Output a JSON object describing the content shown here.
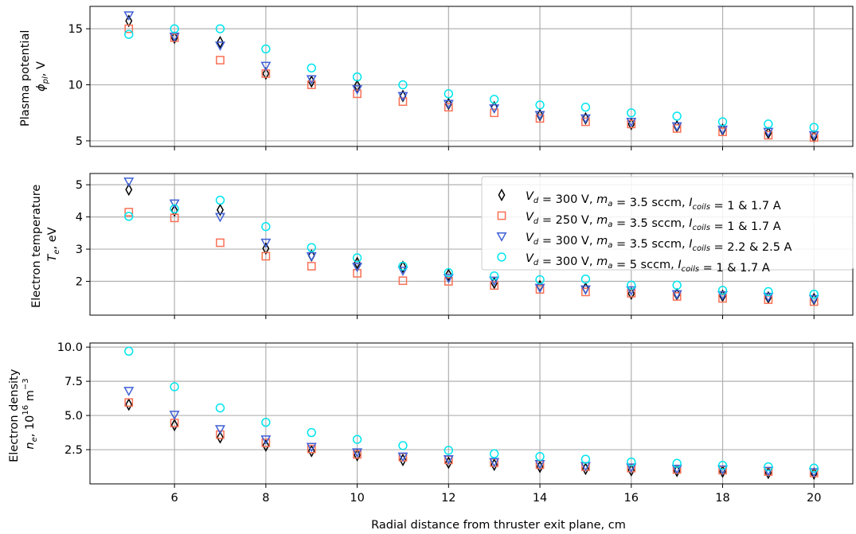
{
  "chart_data": [
    {
      "type": "scatter",
      "ylabel_lines": [
        "Plasma potential",
        "ϕ_pl, V"
      ],
      "xlim": [
        4.15,
        20.85
      ],
      "ylim": [
        4.5,
        17.0
      ],
      "yticks": [
        5,
        10,
        15
      ],
      "ytick_labels": [
        "5",
        "10",
        "15"
      ],
      "grid": true,
      "x": [
        5,
        6,
        7,
        8,
        9,
        10,
        11,
        12,
        13,
        14,
        15,
        16,
        17,
        18,
        19,
        20
      ],
      "series": [
        {
          "name": "V_d = 300 V, m_a = 3.5 sccm, I_coils = 1 & 1.7 A",
          "marker": "diamond",
          "color": "#000000",
          "values": [
            15.7,
            14.2,
            13.8,
            11.0,
            10.3,
            9.9,
            9.0,
            8.3,
            8.0,
            7.3,
            7.0,
            6.5,
            6.3,
            6.0,
            5.7,
            5.4
          ]
        },
        {
          "name": "V_d = 250 V, m_a = 3.5 sccm, I_coils = 1 & 1.7 A",
          "marker": "square",
          "color": "#fa7055",
          "values": [
            15.0,
            14.2,
            12.2,
            11.0,
            10.0,
            9.2,
            8.5,
            8.0,
            7.5,
            7.0,
            6.7,
            6.5,
            6.1,
            5.8,
            5.5,
            5.3
          ]
        },
        {
          "name": "V_d = 300 V, m_a = 3.5 sccm, I_coils = 2.2 & 2.5 A",
          "marker": "triangle-down",
          "color": "#3f5fd6",
          "values": [
            16.2,
            14.3,
            13.5,
            11.7,
            10.5,
            9.6,
            9.0,
            8.3,
            7.9,
            7.3,
            7.0,
            6.7,
            6.3,
            6.0,
            5.8,
            5.5
          ]
        },
        {
          "name": "V_d = 300 V, m_a = 5 sccm, I_coils = 1 & 1.7 A",
          "marker": "circle",
          "color": "#00e5ee",
          "values": [
            14.5,
            15.0,
            15.0,
            13.2,
            11.5,
            10.7,
            10.0,
            9.2,
            8.7,
            8.2,
            8.0,
            7.5,
            7.2,
            6.7,
            6.5,
            6.2
          ]
        }
      ]
    },
    {
      "type": "scatter",
      "ylabel_lines": [
        "Electron temperature",
        "T_e, eV"
      ],
      "xlim": [
        4.15,
        20.85
      ],
      "ylim": [
        0.95,
        5.35
      ],
      "yticks": [
        2,
        3,
        4,
        5
      ],
      "ytick_labels": [
        "2",
        "3",
        "4",
        "5"
      ],
      "grid": true,
      "legend_position": "upper-right",
      "x": [
        5,
        6,
        7,
        8,
        9,
        10,
        11,
        12,
        13,
        14,
        15,
        16,
        17,
        18,
        19,
        20
      ],
      "series": [
        {
          "name": "V_d = 300 V, m_a = 3.5 sccm, I_coils = 1 & 1.7 A",
          "marker": "diamond",
          "color": "#000000",
          "values": [
            4.85,
            4.2,
            4.22,
            3.02,
            2.8,
            2.57,
            2.45,
            2.2,
            1.95,
            1.85,
            1.78,
            1.62,
            1.6,
            1.55,
            1.5,
            1.45
          ]
        },
        {
          "name": "V_d = 250 V, m_a = 3.5 sccm, I_coils = 1 & 1.7 A",
          "marker": "square",
          "color": "#fa7055",
          "values": [
            4.15,
            3.97,
            3.2,
            2.78,
            2.47,
            2.25,
            2.02,
            2.0,
            1.87,
            1.75,
            1.67,
            1.63,
            1.53,
            1.47,
            1.43,
            1.37
          ]
        },
        {
          "name": "V_d = 300 V, m_a = 3.5 sccm, I_coils = 2.2 & 2.5 A",
          "marker": "triangle-down",
          "color": "#3f5fd6",
          "values": [
            5.1,
            4.42,
            4.0,
            3.2,
            2.78,
            2.45,
            2.33,
            2.1,
            2.02,
            1.8,
            1.75,
            1.72,
            1.6,
            1.57,
            1.52,
            1.45
          ]
        },
        {
          "name": "V_d = 300 V, m_a = 5 sccm, I_coils = 1 & 1.7 A",
          "marker": "circle",
          "color": "#00e5ee",
          "values": [
            4.02,
            4.25,
            4.52,
            3.7,
            3.05,
            2.73,
            2.47,
            2.27,
            2.17,
            2.05,
            2.07,
            1.88,
            1.88,
            1.72,
            1.68,
            1.6
          ]
        }
      ]
    },
    {
      "type": "scatter",
      "ylabel_lines": [
        "Electron density",
        "n_e, 10^16 m^-3"
      ],
      "xlabel": "Radial distance from thruster exit plane, cm",
      "xlim": [
        4.15,
        20.85
      ],
      "ylim": [
        0.0,
        10.3
      ],
      "yticks": [
        2.5,
        5.0,
        7.5,
        10.0
      ],
      "ytick_labels": [
        "2.5",
        "5.0",
        "7.5",
        "10.0"
      ],
      "xticks": [
        6,
        8,
        10,
        12,
        14,
        16,
        18,
        20
      ],
      "xtick_labels": [
        "6",
        "8",
        "10",
        "12",
        "14",
        "16",
        "18",
        "20"
      ],
      "grid": true,
      "x": [
        5,
        6,
        7,
        8,
        9,
        10,
        11,
        12,
        13,
        14,
        15,
        16,
        17,
        18,
        19,
        20
      ],
      "series": [
        {
          "name": "V_d = 300 V, m_a = 3.5 sccm, I_coils = 1 & 1.7 A",
          "marker": "diamond",
          "color": "#000000",
          "values": [
            5.8,
            4.3,
            3.4,
            2.8,
            2.4,
            2.1,
            1.75,
            1.55,
            1.4,
            1.25,
            1.1,
            1.0,
            0.95,
            0.9,
            0.8,
            0.75
          ]
        },
        {
          "name": "V_d = 250 V, m_a = 3.5 sccm, I_coils = 1 & 1.7 A",
          "marker": "square",
          "color": "#fa7055",
          "values": [
            5.95,
            4.45,
            3.6,
            3.0,
            2.55,
            2.15,
            1.95,
            1.75,
            1.55,
            1.4,
            1.25,
            1.15,
            1.05,
            1.0,
            0.9,
            0.8
          ]
        },
        {
          "name": "V_d = 300 V, m_a = 3.5 sccm, I_coils = 2.2 & 2.5 A",
          "marker": "triangle-down",
          "color": "#3f5fd6",
          "values": [
            6.8,
            5.05,
            4.0,
            3.25,
            2.7,
            2.3,
            2.0,
            1.8,
            1.6,
            1.45,
            1.3,
            1.2,
            1.1,
            1.05,
            0.95,
            0.85
          ]
        },
        {
          "name": "V_d = 300 V, m_a = 5 sccm, I_coils = 1 & 1.7 A",
          "marker": "circle",
          "color": "#00e5ee",
          "values": [
            9.7,
            7.1,
            5.55,
            4.5,
            3.75,
            3.25,
            2.8,
            2.45,
            2.2,
            2.0,
            1.8,
            1.6,
            1.5,
            1.35,
            1.25,
            1.15
          ]
        }
      ]
    }
  ],
  "legend": {
    "entries": [
      {
        "marker": "diamond",
        "color": "#000000",
        "parts": [
          [
            "V",
            "d"
          ],
          [
            " = 300 V, "
          ],
          [
            "m",
            "a"
          ],
          [
            " = 3.5 sccm, "
          ],
          [
            "I",
            "coils"
          ],
          [
            " = 1 & 1.7 A"
          ]
        ]
      },
      {
        "marker": "square",
        "color": "#fa7055",
        "parts": [
          [
            "V",
            "d"
          ],
          [
            " = 250 V, "
          ],
          [
            "m",
            "a"
          ],
          [
            " = 3.5 sccm, "
          ],
          [
            "I",
            "coils"
          ],
          [
            " = 1 & 1.7 A"
          ]
        ]
      },
      {
        "marker": "triangle-down",
        "color": "#3f5fd6",
        "parts": [
          [
            "V",
            "d"
          ],
          [
            " = 300 V, "
          ],
          [
            "m",
            "a"
          ],
          [
            " = 3.5 sccm, "
          ],
          [
            "I",
            "coils"
          ],
          [
            " = 2.2 & 2.5 A"
          ]
        ]
      },
      {
        "marker": "circle",
        "color": "#00e5ee",
        "parts": [
          [
            "V",
            "d"
          ],
          [
            " = 300 V, "
          ],
          [
            "m",
            "a"
          ],
          [
            " = 5 sccm, "
          ],
          [
            "I",
            "coils"
          ],
          [
            " = 1 & 1.7 A"
          ]
        ]
      }
    ]
  }
}
